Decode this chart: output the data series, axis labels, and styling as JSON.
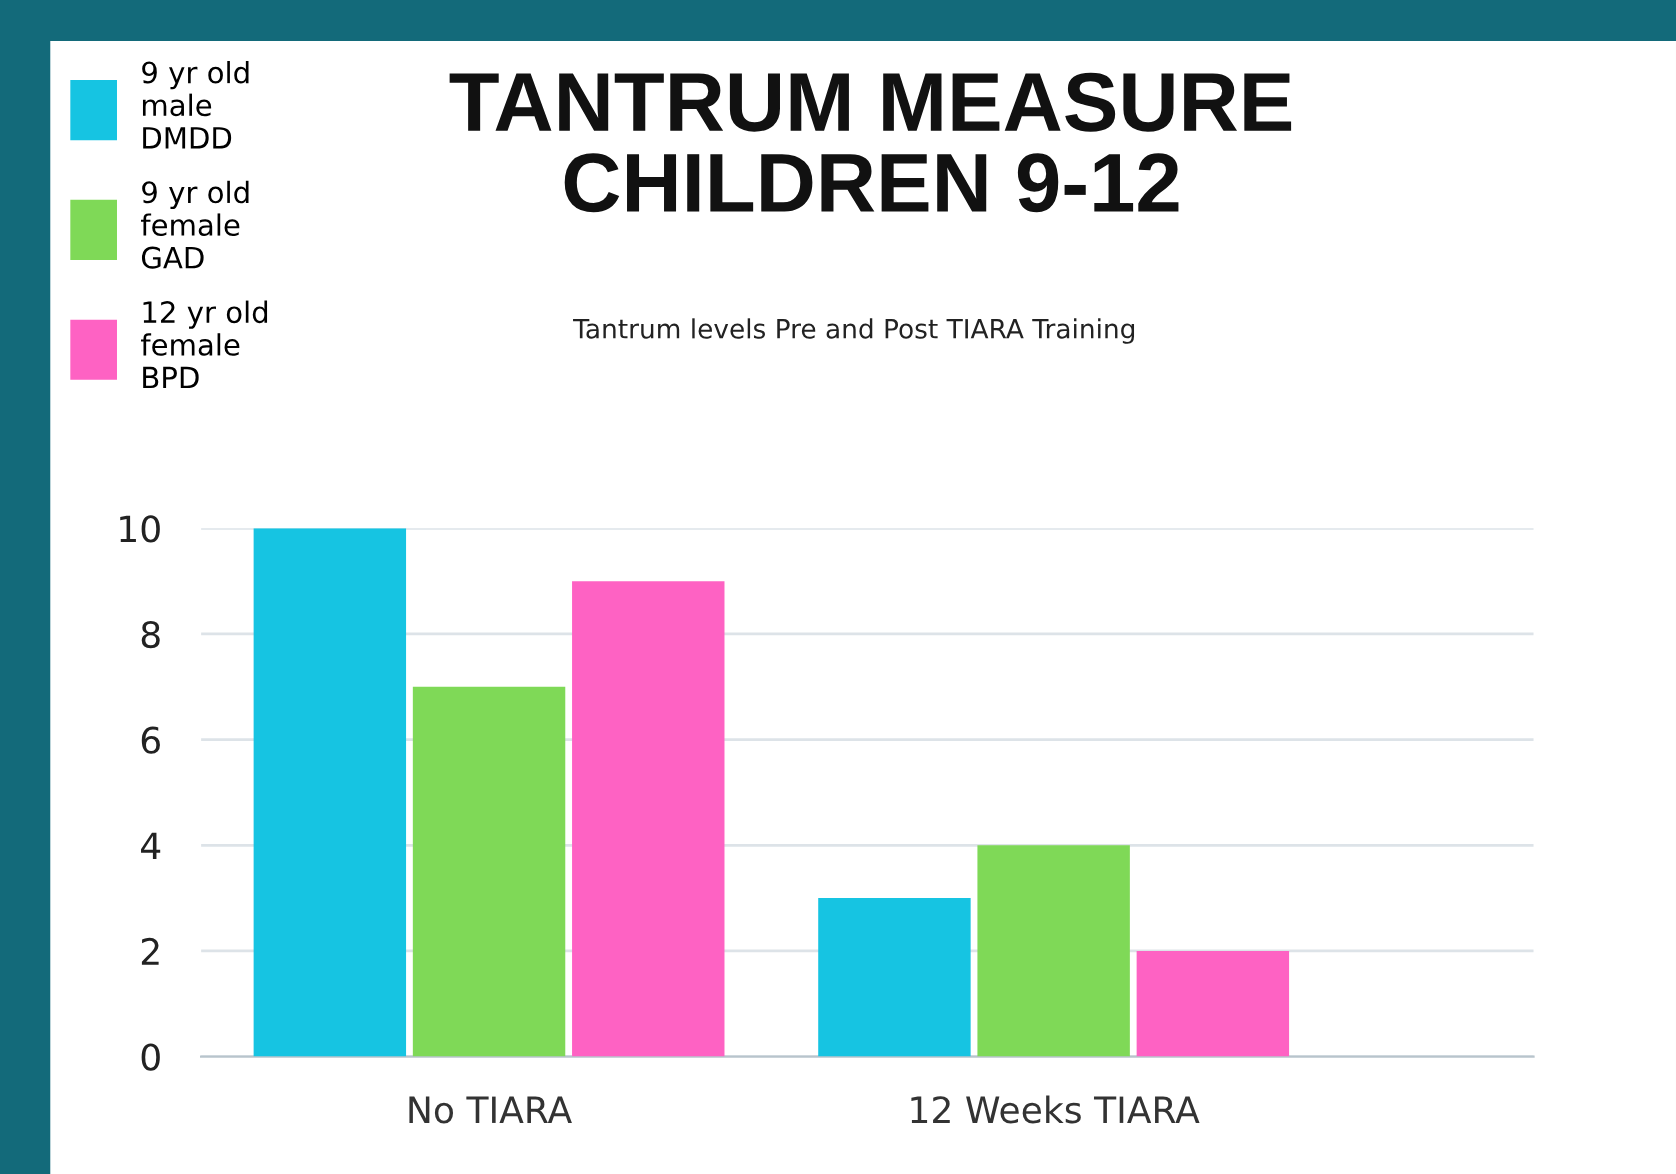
{
  "chart_data": {
    "type": "bar",
    "title": "TANTRUM MEASURE\nCHILDREN 9-12",
    "subtitle": "Tantrum levels Pre and Post TIARA Training",
    "categories": [
      "No TIARA",
      "12 Weeks TIARA"
    ],
    "series": [
      {
        "name": "9 yr old\nmale\nDMDD",
        "color": "#16c4e2",
        "values": [
          10,
          3
        ]
      },
      {
        "name": "9 yr old\nfemale\nGAD",
        "color": "#7fd957",
        "values": [
          7,
          4
        ]
      },
      {
        "name": "12 yr old\nfemale\nBPD",
        "color": "#fe62c3",
        "values": [
          9,
          2
        ]
      }
    ],
    "ylim": [
      0,
      10
    ],
    "yticks": [
      0,
      2,
      4,
      6,
      8,
      10
    ],
    "grid": "y",
    "legend": "top left"
  }
}
